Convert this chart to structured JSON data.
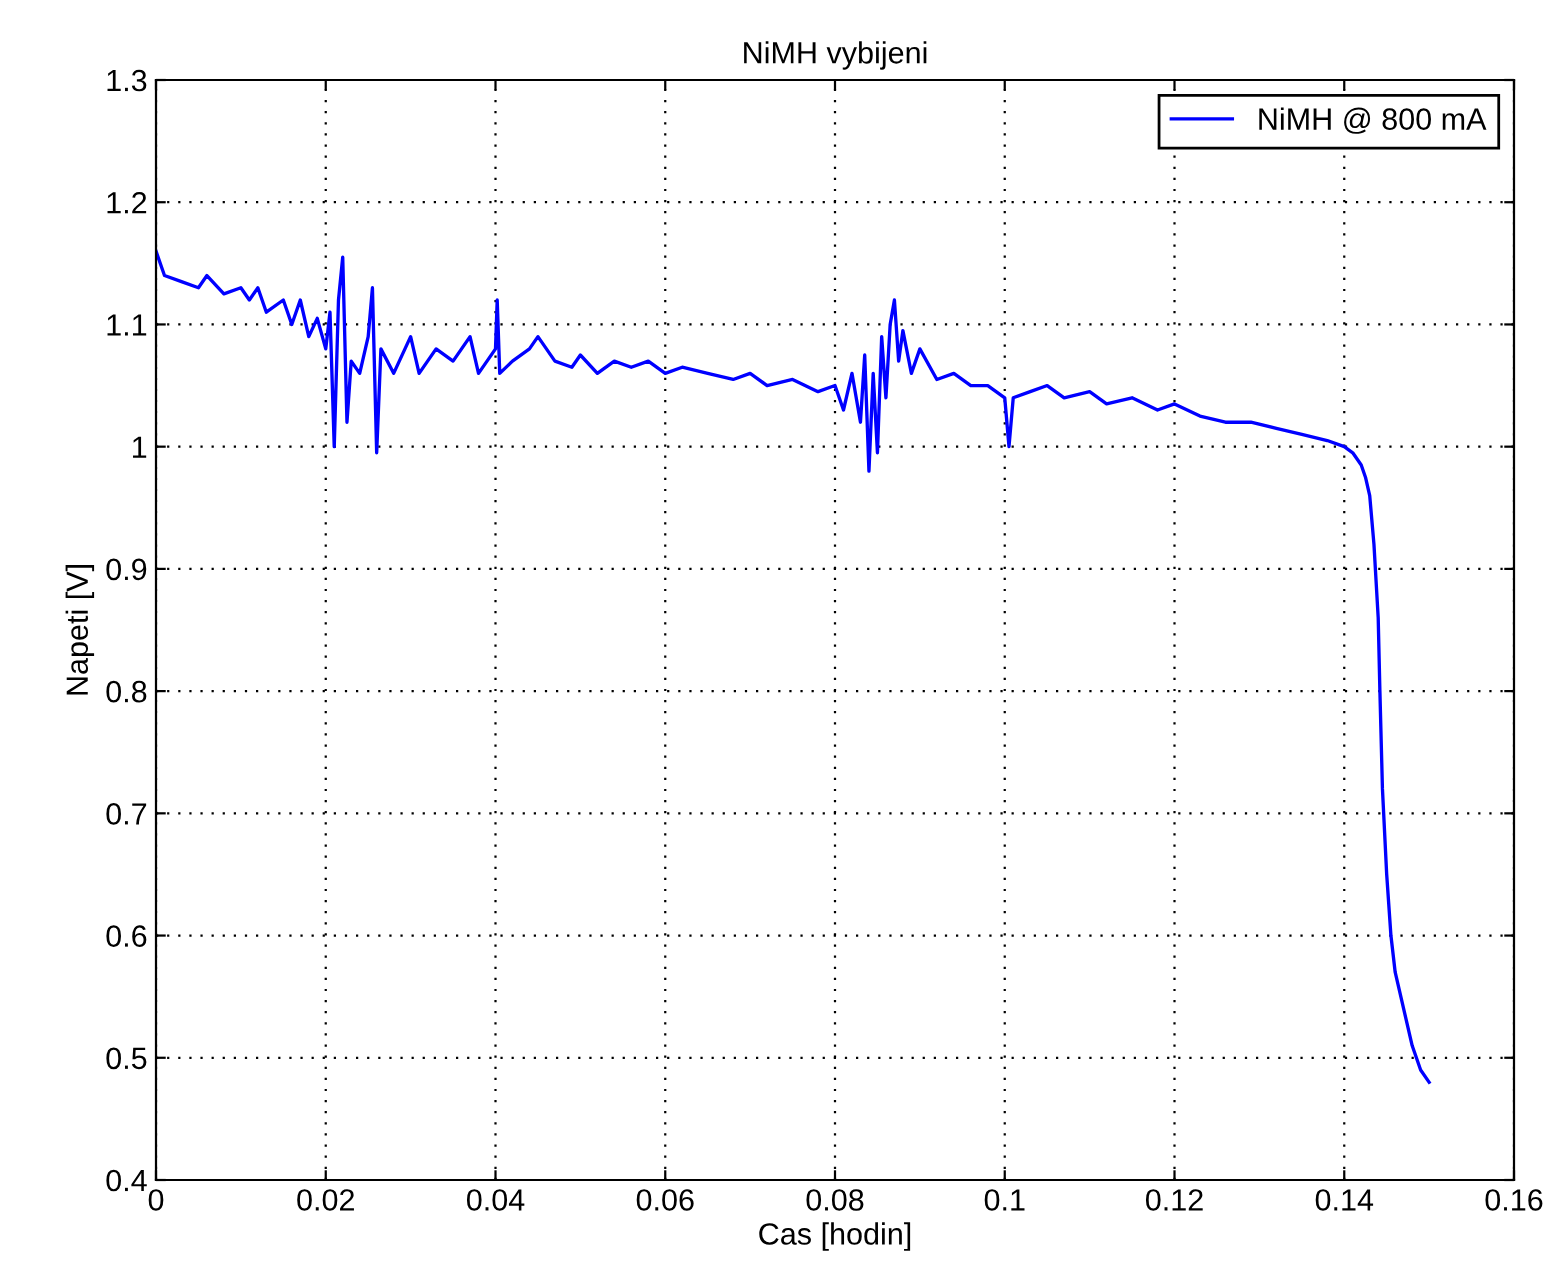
{
  "chart_data": {
    "type": "line",
    "title": "NiMH vybijeni",
    "xlabel": "Cas [hodin]",
    "ylabel": "Napeti [V]",
    "xlim": [
      0,
      0.16
    ],
    "xticks": [
      0,
      0.02,
      0.04,
      0.06,
      0.08,
      0.1,
      0.12,
      0.14,
      0.16
    ],
    "ylim": [
      0.4,
      1.3
    ],
    "yticks": [
      0.4,
      0.5,
      0.6,
      0.7,
      0.8,
      0.9,
      1,
      1.1,
      1.2,
      1.3
    ],
    "grid": true,
    "legend": "top right",
    "line_style": "solid",
    "marker": "none",
    "series": [
      {
        "name": "NiMH @ 800 mA",
        "color": "#0000ff",
        "x": [
          0,
          0.001,
          0.003,
          0.005,
          0.006,
          0.008,
          0.01,
          0.011,
          0.012,
          0.013,
          0.015,
          0.016,
          0.017,
          0.018,
          0.019,
          0.02,
          0.0205,
          0.021,
          0.0215,
          0.022,
          0.0225,
          0.023,
          0.024,
          0.025,
          0.0255,
          0.026,
          0.0265,
          0.028,
          0.03,
          0.031,
          0.033,
          0.035,
          0.037,
          0.038,
          0.04,
          0.0402,
          0.0405,
          0.042,
          0.044,
          0.045,
          0.047,
          0.049,
          0.05,
          0.052,
          0.054,
          0.056,
          0.058,
          0.06,
          0.062,
          0.065,
          0.068,
          0.07,
          0.072,
          0.075,
          0.078,
          0.08,
          0.081,
          0.082,
          0.083,
          0.0835,
          0.084,
          0.0845,
          0.085,
          0.0855,
          0.086,
          0.0865,
          0.087,
          0.0875,
          0.088,
          0.089,
          0.09,
          0.092,
          0.094,
          0.096,
          0.098,
          0.1,
          0.1005,
          0.101,
          0.103,
          0.105,
          0.107,
          0.11,
          0.112,
          0.115,
          0.118,
          0.12,
          0.123,
          0.126,
          0.129,
          0.132,
          0.135,
          0.138,
          0.14,
          0.141,
          0.142,
          0.1425,
          0.143,
          0.1435,
          0.144,
          0.1442,
          0.1445,
          0.145,
          0.1455,
          0.146,
          0.147,
          0.148,
          0.149,
          0.15
        ],
        "values": [
          1.16,
          1.14,
          1.135,
          1.13,
          1.14,
          1.125,
          1.13,
          1.12,
          1.13,
          1.11,
          1.12,
          1.1,
          1.12,
          1.09,
          1.105,
          1.08,
          1.11,
          1.0,
          1.12,
          1.155,
          1.02,
          1.07,
          1.06,
          1.09,
          1.13,
          0.995,
          1.08,
          1.06,
          1.09,
          1.06,
          1.08,
          1.07,
          1.09,
          1.06,
          1.08,
          1.12,
          1.06,
          1.07,
          1.08,
          1.09,
          1.07,
          1.065,
          1.075,
          1.06,
          1.07,
          1.065,
          1.07,
          1.06,
          1.065,
          1.06,
          1.055,
          1.06,
          1.05,
          1.055,
          1.045,
          1.05,
          1.03,
          1.06,
          1.02,
          1.075,
          0.98,
          1.06,
          0.995,
          1.09,
          1.04,
          1.1,
          1.12,
          1.07,
          1.095,
          1.06,
          1.08,
          1.055,
          1.06,
          1.05,
          1.05,
          1.04,
          1.0,
          1.04,
          1.045,
          1.05,
          1.04,
          1.045,
          1.035,
          1.04,
          1.03,
          1.035,
          1.025,
          1.02,
          1.02,
          1.015,
          1.01,
          1.005,
          1.0,
          0.995,
          0.985,
          0.975,
          0.96,
          0.92,
          0.86,
          0.8,
          0.72,
          0.65,
          0.6,
          0.57,
          0.54,
          0.51,
          0.49,
          0.48
        ]
      }
    ]
  }
}
